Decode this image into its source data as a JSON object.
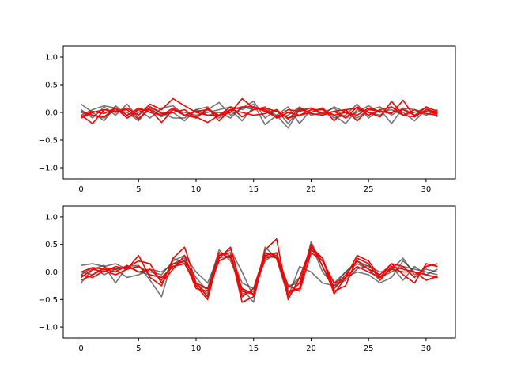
{
  "figure": {
    "colors": {
      "dark": "#3a3a3a",
      "red": "#ff0000"
    }
  },
  "chart_data": [
    {
      "type": "line",
      "title": "",
      "xlabel": "",
      "ylabel": "",
      "xlim": [
        -1.55,
        32.55
      ],
      "ylim": [
        -1.2,
        1.2
      ],
      "xticks": [
        0,
        5,
        10,
        15,
        20,
        25,
        30
      ],
      "yticks": [
        -1.0,
        -0.5,
        0.0,
        0.5,
        1.0
      ],
      "ytick_labels": [
        "−1.0",
        "−0.5",
        "0.0",
        "0.5",
        "1.0"
      ],
      "grid": false,
      "series": [
        {
          "color": "dark",
          "values": [
            0.15,
            0.0,
            -0.15,
            0.12,
            -0.05,
            0.05,
            -0.1,
            0.08,
            0.12,
            -0.05,
            -0.1,
            0.05,
            0.18,
            -0.05,
            0.08,
            0.2,
            -0.1,
            0.05,
            -0.2,
            0.05,
            0.08,
            -0.05,
            0.1,
            0.0,
            -0.1,
            0.05,
            0.1,
            -0.05,
            0.08,
            0.05,
            -0.05,
            0.05
          ]
        },
        {
          "color": "dark",
          "values": [
            0.05,
            -0.1,
            0.1,
            -0.05,
            0.15,
            -0.1,
            0.05,
            -0.05,
            0.0,
            -0.15,
            0.05,
            0.1,
            -0.1,
            0.05,
            -0.15,
            0.1,
            0.05,
            -0.05,
            -0.28,
            0.05,
            0.0,
            0.08,
            -0.1,
            -0.05,
            0.15,
            -0.1,
            0.05,
            -0.2,
            0.08,
            -0.05,
            0.1,
            -0.05
          ]
        },
        {
          "color": "dark",
          "values": [
            -0.05,
            0.05,
            0.12,
            0.08,
            -0.1,
            0.0,
            0.08,
            -0.08,
            0.05,
            0.0,
            -0.05,
            0.0,
            0.05,
            0.1,
            0.05,
            0.15,
            -0.22,
            -0.05,
            0.1,
            -0.2,
            0.05,
            0.05,
            -0.05,
            -0.2,
            0.05,
            0.0,
            -0.05,
            0.1,
            0.0,
            -0.15,
            0.05,
            0.0
          ]
        },
        {
          "color": "dark",
          "values": [
            0.0,
            -0.05,
            -0.1,
            0.05,
            0.0,
            -0.15,
            0.1,
            0.0,
            -0.1,
            -0.1,
            0.05,
            -0.05,
            0.0,
            -0.1,
            0.1,
            0.05,
            0.1,
            -0.1,
            -0.05,
            0.1,
            -0.05,
            0.0,
            0.08,
            -0.1,
            0.0,
            0.12,
            0.0,
            0.05,
            -0.05,
            0.0,
            0.08,
            -0.08
          ]
        },
        {
          "color": "red",
          "values": [
            -0.05,
            -0.2,
            0.05,
            0.02,
            0.05,
            -0.12,
            0.1,
            -0.02,
            0.0,
            0.05,
            -0.1,
            0.08,
            -0.15,
            0.05,
            0.1,
            0.1,
            0.02,
            -0.08,
            0.05,
            0.02,
            0.08,
            -0.02,
            0.02,
            -0.1,
            0.1,
            0.0,
            -0.08,
            0.2,
            -0.05,
            0.05,
            -0.02,
            -0.05
          ]
        },
        {
          "color": "red",
          "values": [
            -0.1,
            0.0,
            0.05,
            0.0,
            0.08,
            -0.05,
            0.15,
            0.05,
            0.25,
            0.12,
            0.0,
            -0.05,
            -0.05,
            0.0,
            0.25,
            0.08,
            0.05,
            -0.1,
            0.0,
            -0.05,
            0.05,
            0.05,
            -0.05,
            0.0,
            -0.05,
            0.08,
            0.02,
            -0.02,
            0.22,
            -0.08,
            0.05,
            0.0
          ]
        },
        {
          "color": "red",
          "values": [
            0.02,
            -0.05,
            -0.08,
            0.08,
            -0.1,
            0.05,
            0.05,
            -0.18,
            0.05,
            -0.05,
            -0.08,
            -0.18,
            -0.05,
            0.1,
            -0.08,
            0.05,
            0.08,
            0.02,
            -0.1,
            -0.05,
            0.0,
            0.08,
            -0.15,
            0.05,
            0.08,
            -0.05,
            0.05,
            0.1,
            -0.05,
            -0.08,
            0.1,
            0.02
          ]
        },
        {
          "color": "red",
          "values": [
            -0.08,
            0.02,
            -0.02,
            0.08,
            -0.05,
            0.08,
            0.0,
            -0.05,
            0.08,
            -0.05,
            0.02,
            0.05,
            -0.05,
            0.05,
            0.0,
            -0.05,
            -0.02,
            0.05,
            -0.12,
            0.08,
            -0.02,
            -0.05,
            0.02,
            0.05,
            -0.15,
            0.05,
            0.02,
            0.0,
            0.05,
            -0.05,
            0.02,
            -0.02
          ]
        }
      ]
    },
    {
      "type": "line",
      "title": "",
      "xlabel": "",
      "ylabel": "",
      "xlim": [
        -1.55,
        32.55
      ],
      "ylim": [
        -1.2,
        1.2
      ],
      "xticks": [
        0,
        5,
        10,
        15,
        20,
        25,
        30
      ],
      "yticks": [
        -1.0,
        -0.5,
        0.0,
        0.5,
        1.0
      ],
      "ytick_labels": [
        "−1.0",
        "−0.5",
        "0.0",
        "0.5",
        "1.0"
      ],
      "grid": false,
      "series": [
        {
          "color": "dark",
          "values": [
            0.12,
            0.15,
            0.1,
            0.15,
            0.05,
            0.1,
            0.0,
            -0.05,
            0.2,
            0.3,
            0.0,
            -0.2,
            0.3,
            0.4,
            0.0,
            -0.45,
            0.3,
            0.25,
            -0.3,
            -0.1,
            0.45,
            0.2,
            -0.2,
            0.0,
            0.2,
            0.1,
            0.0,
            0.05,
            0.25,
            -0.05,
            0.05,
            0.0
          ]
        },
        {
          "color": "dark",
          "values": [
            -0.2,
            0.05,
            0.12,
            -0.2,
            0.1,
            0.12,
            -0.15,
            -0.45,
            0.25,
            0.15,
            -0.25,
            -0.3,
            0.4,
            0.2,
            -0.3,
            -0.55,
            0.45,
            0.25,
            -0.45,
            0.1,
            0.0,
            -0.2,
            -0.25,
            0.0,
            0.15,
            0.05,
            -0.15,
            0.1,
            -0.15,
            0.1,
            -0.05,
            0.05
          ]
        },
        {
          "color": "dark",
          "values": [
            0.0,
            -0.05,
            0.05,
            0.05,
            0.1,
            0.0,
            -0.05,
            -0.1,
            0.1,
            0.2,
            -0.1,
            -0.35,
            0.25,
            0.3,
            -0.2,
            -0.3,
            0.2,
            0.35,
            -0.25,
            -0.2,
            0.5,
            0.0,
            -0.25,
            -0.15,
            0.05,
            0.12,
            -0.1,
            0.0,
            0.1,
            0.05,
            0.0,
            -0.05
          ]
        },
        {
          "color": "dark",
          "values": [
            -0.05,
            0.08,
            -0.05,
            0.05,
            -0.1,
            -0.05,
            0.05,
            0.0,
            0.15,
            0.25,
            -0.2,
            -0.4,
            0.35,
            0.3,
            -0.4,
            -0.35,
            0.35,
            0.3,
            -0.4,
            -0.3,
            0.55,
            0.1,
            -0.3,
            -0.1,
            0.0,
            -0.05,
            -0.2,
            -0.1,
            0.2,
            0.0,
            -0.05,
            -0.1
          ]
        },
        {
          "color": "red",
          "values": [
            -0.1,
            0.05,
            0.0,
            0.1,
            0.05,
            0.3,
            -0.1,
            -0.25,
            0.25,
            0.45,
            -0.2,
            -0.45,
            0.25,
            0.45,
            -0.35,
            -0.4,
            0.4,
            0.6,
            -0.5,
            -0.1,
            0.45,
            0.25,
            -0.4,
            -0.1,
            0.3,
            0.2,
            -0.1,
            0.15,
            -0.05,
            -0.2,
            0.15,
            0.1
          ]
        },
        {
          "color": "red",
          "values": [
            -0.15,
            -0.05,
            0.08,
            0.05,
            0.08,
            0.2,
            0.15,
            -0.2,
            0.05,
            0.3,
            -0.25,
            -0.5,
            0.3,
            0.35,
            -0.55,
            -0.45,
            0.3,
            0.35,
            -0.35,
            -0.3,
            0.5,
            0.1,
            -0.35,
            -0.25,
            0.25,
            0.15,
            -0.15,
            0.1,
            0.05,
            0.0,
            -0.05,
            -0.1
          ]
        },
        {
          "color": "red",
          "values": [
            0.0,
            0.08,
            0.05,
            0.0,
            0.12,
            0.0,
            0.05,
            -0.15,
            0.15,
            0.2,
            -0.3,
            -0.35,
            0.35,
            0.25,
            -0.3,
            -0.4,
            0.25,
            0.3,
            -0.25,
            -0.35,
            0.35,
            0.2,
            -0.2,
            -0.1,
            0.1,
            0.0,
            -0.1,
            0.05,
            0.0,
            0.0,
            -0.15,
            -0.08
          ]
        },
        {
          "color": "red",
          "values": [
            -0.05,
            -0.1,
            0.02,
            -0.05,
            0.05,
            0.1,
            -0.05,
            -0.1,
            0.1,
            0.15,
            -0.2,
            -0.3,
            0.2,
            0.3,
            -0.45,
            -0.3,
            0.35,
            0.25,
            -0.4,
            -0.2,
            0.4,
            0.25,
            -0.3,
            -0.05,
            0.2,
            0.05,
            -0.05,
            0.15,
            0.1,
            -0.1,
            0.1,
            0.15
          ]
        }
      ]
    }
  ]
}
